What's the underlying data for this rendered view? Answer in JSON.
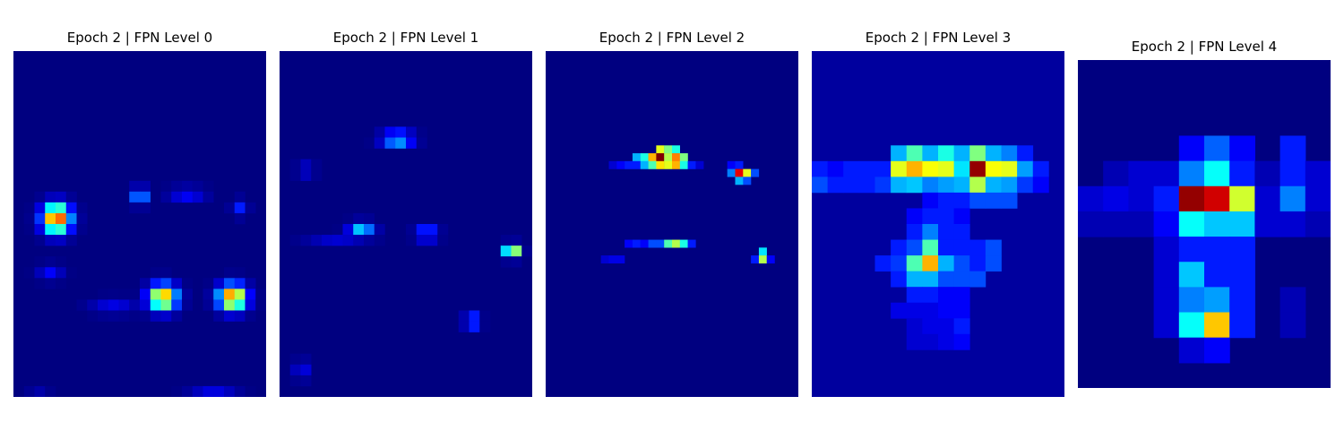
{
  "chart_data": [
    {
      "type": "heatmap",
      "title": "Epoch 2 | FPN Level 0",
      "colormap": "jet",
      "axes": "off",
      "grid": [
        24,
        32
      ],
      "background": 0.0,
      "hotspots": [
        {
          "x": 4.1,
          "y": 15.5,
          "value": 0.85,
          "sx": 0.9,
          "sy": 0.9
        },
        {
          "x": 20.8,
          "y": 22.8,
          "value": 0.8,
          "sx": 0.9,
          "sy": 0.8
        },
        {
          "x": 14.2,
          "y": 22.8,
          "value": 0.75,
          "sx": 0.9,
          "sy": 0.8
        },
        {
          "x": 19.0,
          "y": 32.3,
          "value": 0.35,
          "sx": 1.5,
          "sy": 0.5
        },
        {
          "x": 2.4,
          "y": 32.5,
          "value": 0.3,
          "sx": 0.7,
          "sy": 0.5
        },
        {
          "x": 12.0,
          "y": 13.4,
          "value": 0.35,
          "sx": 0.5,
          "sy": 0.5
        },
        {
          "x": 16.5,
          "y": 13.2,
          "value": 0.15,
          "sx": 1.2,
          "sy": 0.4
        },
        {
          "x": 21.5,
          "y": 14.5,
          "value": 0.15,
          "sx": 0.5,
          "sy": 0.5
        },
        {
          "x": 3.5,
          "y": 20.5,
          "value": 0.12,
          "sx": 0.8,
          "sy": 0.5
        },
        {
          "x": 27.0,
          "y": 21.0,
          "value": 0.12,
          "sx": 0.6,
          "sy": 1.0
        },
        {
          "x": 9.5,
          "y": 23.6,
          "value": 0.1,
          "sx": 1.5,
          "sy": 0.5
        },
        {
          "x": 3.0,
          "y": 36.9,
          "value": 0.1,
          "sx": 1.2,
          "sy": 0.4
        }
      ]
    },
    {
      "type": "heatmap",
      "title": "Epoch 2 | FPN Level 1",
      "colormap": "jet",
      "axes": "off",
      "grid": [
        24,
        32
      ],
      "background": 0.0,
      "hotspots": [
        {
          "x": 11.2,
          "y": 8.1,
          "value": 0.45,
          "sx": 1.0,
          "sy": 0.4
        },
        {
          "x": 7.8,
          "y": 16.4,
          "value": 0.35,
          "sx": 0.8,
          "sy": 0.4
        },
        {
          "x": 14.0,
          "y": 16.9,
          "value": 0.3,
          "sx": 0.7,
          "sy": 0.4
        },
        {
          "x": 22.1,
          "y": 18.5,
          "value": 0.7,
          "sx": 0.5,
          "sy": 0.4
        },
        {
          "x": 18.3,
          "y": 25.0,
          "value": 0.35,
          "sx": 0.5,
          "sy": 0.4
        },
        {
          "x": 2.1,
          "y": 29.5,
          "value": 0.12,
          "sx": 0.5,
          "sy": 0.6
        },
        {
          "x": 2.5,
          "y": 11.0,
          "value": 0.08,
          "sx": 0.6,
          "sy": 0.6
        },
        {
          "x": 5.5,
          "y": 17.5,
          "value": 0.08,
          "sx": 2.0,
          "sy": 0.4
        }
      ]
    },
    {
      "type": "heatmap",
      "title": "Epoch 2 | FPN Level 2",
      "colormap": "jet",
      "axes": "off",
      "grid": [
        32,
        44
      ],
      "background": 0.0,
      "cells": [
        [
          14,
          12,
          0.6
        ],
        [
          15,
          12,
          0.5
        ],
        [
          16,
          12,
          0.4
        ],
        [
          11,
          13,
          0.3
        ],
        [
          12,
          13,
          0.4
        ],
        [
          13,
          13,
          0.7
        ],
        [
          14,
          13,
          1.0
        ],
        [
          15,
          13,
          0.55
        ],
        [
          16,
          13,
          0.75
        ],
        [
          17,
          13,
          0.5
        ],
        [
          11,
          14,
          0.15
        ],
        [
          12,
          14,
          0.3
        ],
        [
          13,
          14,
          0.45
        ],
        [
          14,
          14,
          0.65
        ],
        [
          15,
          14,
          0.6
        ],
        [
          16,
          14,
          0.7
        ],
        [
          17,
          14,
          0.4
        ],
        [
          18,
          14,
          0.15
        ],
        [
          8,
          14,
          0.08
        ],
        [
          9,
          14,
          0.12
        ],
        [
          10,
          14,
          0.15
        ],
        [
          19,
          14,
          0.08
        ],
        [
          23,
          14,
          0.12
        ],
        [
          24,
          14,
          0.15
        ],
        [
          23,
          15,
          0.25
        ],
        [
          24,
          15,
          0.9
        ],
        [
          25,
          15,
          0.6
        ],
        [
          26,
          15,
          0.2
        ],
        [
          24,
          16,
          0.3
        ],
        [
          25,
          16,
          0.2
        ],
        [
          14,
          24,
          0.2
        ],
        [
          15,
          24,
          0.45
        ],
        [
          16,
          24,
          0.55
        ],
        [
          17,
          24,
          0.4
        ],
        [
          18,
          24,
          0.15
        ],
        [
          10,
          24,
          0.12
        ],
        [
          11,
          24,
          0.15
        ],
        [
          12,
          24,
          0.12
        ],
        [
          13,
          24,
          0.2
        ],
        [
          27,
          25,
          0.35
        ],
        [
          27,
          26,
          0.55
        ],
        [
          26,
          26,
          0.15
        ],
        [
          28,
          26,
          0.12
        ],
        [
          7,
          26,
          0.08
        ],
        [
          8,
          26,
          0.1
        ],
        [
          9,
          26,
          0.1
        ]
      ]
    },
    {
      "type": "heatmap",
      "title": "Epoch 2 | FPN Level 3",
      "colormap": "jet",
      "axes": "off",
      "grid": [
        16,
        22
      ],
      "background": 0.03,
      "cells": [
        [
          5,
          6,
          0.3
        ],
        [
          6,
          6,
          0.45
        ],
        [
          7,
          6,
          0.3
        ],
        [
          8,
          6,
          0.4
        ],
        [
          9,
          6,
          0.3
        ],
        [
          10,
          6,
          0.5
        ],
        [
          11,
          6,
          0.3
        ],
        [
          12,
          6,
          0.25
        ],
        [
          13,
          6,
          0.15
        ],
        [
          0,
          7,
          0.15
        ],
        [
          1,
          7,
          0.12
        ],
        [
          2,
          7,
          0.15
        ],
        [
          3,
          7,
          0.15
        ],
        [
          4,
          7,
          0.15
        ],
        [
          5,
          7,
          0.6
        ],
        [
          6,
          7,
          0.7
        ],
        [
          7,
          7,
          0.62
        ],
        [
          8,
          7,
          0.6
        ],
        [
          9,
          7,
          0.35
        ],
        [
          10,
          7,
          0.98
        ],
        [
          11,
          7,
          0.62
        ],
        [
          12,
          7,
          0.6
        ],
        [
          13,
          7,
          0.28
        ],
        [
          14,
          7,
          0.15
        ],
        [
          0,
          8,
          0.2
        ],
        [
          1,
          8,
          0.15
        ],
        [
          2,
          8,
          0.15
        ],
        [
          3,
          8,
          0.15
        ],
        [
          4,
          8,
          0.18
        ],
        [
          5,
          8,
          0.3
        ],
        [
          6,
          8,
          0.32
        ],
        [
          7,
          8,
          0.25
        ],
        [
          8,
          8,
          0.28
        ],
        [
          9,
          8,
          0.3
        ],
        [
          10,
          8,
          0.55
        ],
        [
          11,
          8,
          0.3
        ],
        [
          12,
          8,
          0.28
        ],
        [
          13,
          8,
          0.18
        ],
        [
          14,
          8,
          0.12
        ],
        [
          7,
          9,
          0.12
        ],
        [
          8,
          9,
          0.15
        ],
        [
          9,
          9,
          0.15
        ],
        [
          10,
          9,
          0.2
        ],
        [
          11,
          9,
          0.2
        ],
        [
          12,
          9,
          0.2
        ],
        [
          6,
          10,
          0.12
        ],
        [
          7,
          10,
          0.15
        ],
        [
          8,
          10,
          0.15
        ],
        [
          9,
          10,
          0.12
        ],
        [
          6,
          11,
          0.15
        ],
        [
          7,
          11,
          0.25
        ],
        [
          8,
          11,
          0.15
        ],
        [
          9,
          11,
          0.15
        ],
        [
          5,
          12,
          0.15
        ],
        [
          6,
          12,
          0.2
        ],
        [
          7,
          12,
          0.45
        ],
        [
          8,
          12,
          0.15
        ],
        [
          9,
          12,
          0.15
        ],
        [
          10,
          12,
          0.15
        ],
        [
          11,
          12,
          0.2
        ],
        [
          4,
          13,
          0.15
        ],
        [
          5,
          13,
          0.18
        ],
        [
          6,
          13,
          0.45
        ],
        [
          7,
          13,
          0.7
        ],
        [
          8,
          13,
          0.3
        ],
        [
          9,
          13,
          0.2
        ],
        [
          10,
          13,
          0.15
        ],
        [
          11,
          13,
          0.2
        ],
        [
          5,
          14,
          0.15
        ],
        [
          6,
          14,
          0.3
        ],
        [
          7,
          14,
          0.3
        ],
        [
          8,
          14,
          0.2
        ],
        [
          9,
          14,
          0.2
        ],
        [
          10,
          14,
          0.2
        ],
        [
          6,
          15,
          0.15
        ],
        [
          7,
          15,
          0.15
        ],
        [
          8,
          15,
          0.12
        ],
        [
          9,
          15,
          0.12
        ],
        [
          5,
          16,
          0.1
        ],
        [
          6,
          16,
          0.1
        ],
        [
          7,
          16,
          0.1
        ],
        [
          8,
          16,
          0.12
        ],
        [
          9,
          16,
          0.12
        ],
        [
          6,
          17,
          0.08
        ],
        [
          7,
          17,
          0.1
        ],
        [
          8,
          17,
          0.1
        ],
        [
          9,
          17,
          0.15
        ],
        [
          6,
          18,
          0.08
        ],
        [
          7,
          18,
          0.08
        ],
        [
          8,
          18,
          0.1
        ],
        [
          9,
          18,
          0.12
        ]
      ]
    },
    {
      "type": "heatmap",
      "title": "Epoch 2 | FPN Level 4",
      "colormap": "jet",
      "axes": "off",
      "grid": [
        10,
        13
      ],
      "background": 0.0,
      "cells": [
        [
          4,
          3,
          0.12
        ],
        [
          5,
          3,
          0.22
        ],
        [
          6,
          3,
          0.12
        ],
        [
          8,
          3,
          0.15
        ],
        [
          1,
          4,
          0.05
        ],
        [
          2,
          4,
          0.08
        ],
        [
          3,
          4,
          0.08
        ],
        [
          4,
          4,
          0.25
        ],
        [
          5,
          4,
          0.38
        ],
        [
          6,
          4,
          0.15
        ],
        [
          7,
          4,
          0.05
        ],
        [
          8,
          4,
          0.15
        ],
        [
          9,
          4,
          0.08
        ],
        [
          0,
          5,
          0.08
        ],
        [
          1,
          5,
          0.1
        ],
        [
          2,
          5,
          0.08
        ],
        [
          3,
          5,
          0.15
        ],
        [
          4,
          5,
          0.98
        ],
        [
          5,
          5,
          0.92
        ],
        [
          6,
          5,
          0.58
        ],
        [
          7,
          5,
          0.08
        ],
        [
          8,
          5,
          0.25
        ],
        [
          9,
          5,
          0.08
        ],
        [
          0,
          6,
          0.05
        ],
        [
          1,
          6,
          0.05
        ],
        [
          2,
          6,
          0.05
        ],
        [
          3,
          6,
          0.12
        ],
        [
          4,
          6,
          0.38
        ],
        [
          5,
          6,
          0.32
        ],
        [
          6,
          6,
          0.32
        ],
        [
          7,
          6,
          0.08
        ],
        [
          8,
          6,
          0.08
        ],
        [
          9,
          6,
          0.05
        ],
        [
          3,
          7,
          0.08
        ],
        [
          4,
          7,
          0.15
        ],
        [
          5,
          7,
          0.15
        ],
        [
          6,
          7,
          0.15
        ],
        [
          3,
          8,
          0.08
        ],
        [
          4,
          8,
          0.32
        ],
        [
          5,
          8,
          0.15
        ],
        [
          6,
          8,
          0.15
        ],
        [
          3,
          9,
          0.08
        ],
        [
          4,
          9,
          0.25
        ],
        [
          5,
          9,
          0.28
        ],
        [
          6,
          9,
          0.15
        ],
        [
          8,
          9,
          0.05
        ],
        [
          3,
          10,
          0.08
        ],
        [
          4,
          10,
          0.38
        ],
        [
          5,
          10,
          0.68
        ],
        [
          6,
          10,
          0.15
        ],
        [
          8,
          10,
          0.05
        ],
        [
          4,
          11,
          0.08
        ],
        [
          5,
          11,
          0.12
        ]
      ]
    }
  ]
}
